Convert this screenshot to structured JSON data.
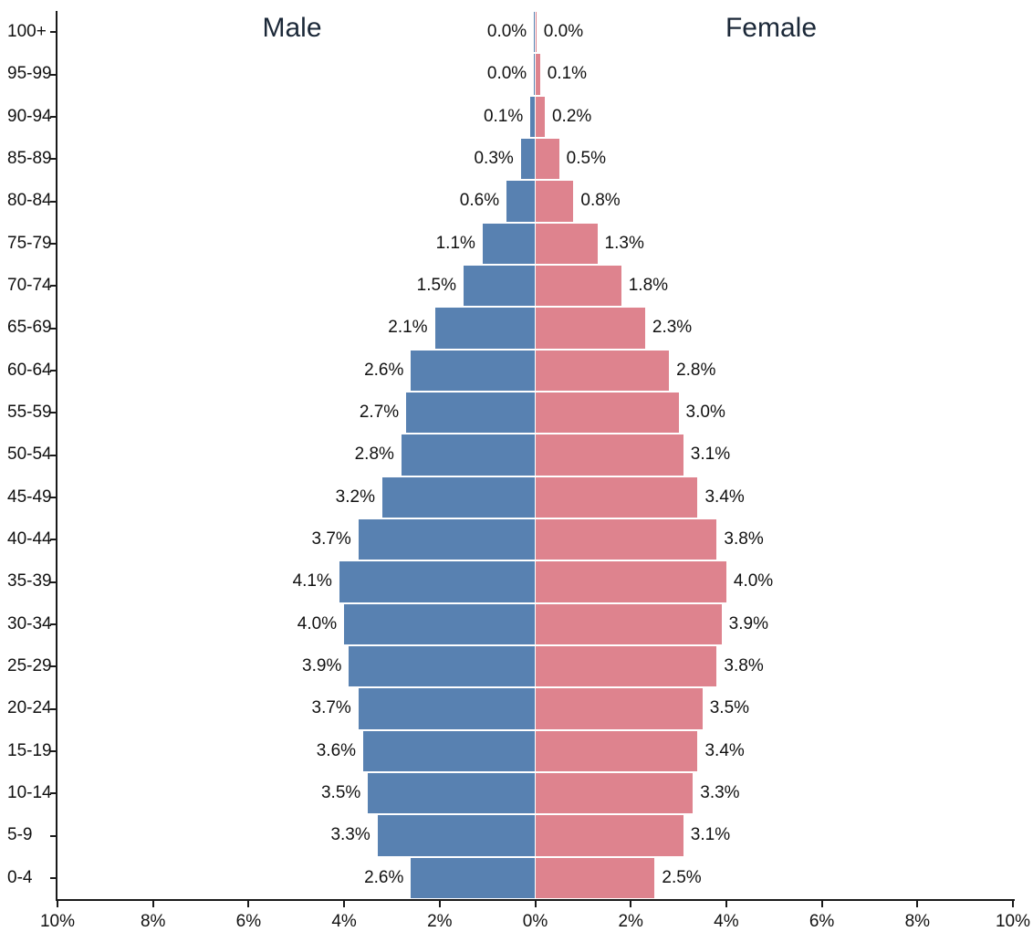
{
  "chart_data": {
    "type": "bar",
    "subtype": "population-pyramid",
    "title": "",
    "xlabel": "",
    "ylabel": "",
    "grid": false,
    "legend_position": "none",
    "axis_max": 10,
    "x_ticks": [
      "10%",
      "8%",
      "6%",
      "4%",
      "2%",
      "0%",
      "2%",
      "4%",
      "6%",
      "8%",
      "10%"
    ],
    "categories": [
      "100+",
      "95-99",
      "90-94",
      "85-89",
      "80-84",
      "75-79",
      "70-74",
      "65-69",
      "60-64",
      "55-59",
      "50-54",
      "45-49",
      "40-44",
      "35-39",
      "30-34",
      "25-29",
      "20-24",
      "15-19",
      "10-14",
      "5-9",
      "0-4"
    ],
    "series": [
      {
        "name": "Male",
        "side": "left",
        "color": "#5881b1",
        "values": [
          0.0,
          0.0,
          0.1,
          0.3,
          0.6,
          1.1,
          1.5,
          2.1,
          2.6,
          2.7,
          2.8,
          3.2,
          3.7,
          4.1,
          4.0,
          3.9,
          3.7,
          3.6,
          3.5,
          3.3,
          2.6
        ],
        "labels": [
          "0.0%",
          "0.0%",
          "0.1%",
          "0.3%",
          "0.6%",
          "1.1%",
          "1.5%",
          "2.1%",
          "2.6%",
          "2.7%",
          "2.8%",
          "3.2%",
          "3.7%",
          "4.1%",
          "4.0%",
          "3.9%",
          "3.7%",
          "3.6%",
          "3.5%",
          "3.3%",
          "2.6%"
        ]
      },
      {
        "name": "Female",
        "side": "right",
        "color": "#de838e",
        "values": [
          0.0,
          0.1,
          0.2,
          0.5,
          0.8,
          1.3,
          1.8,
          2.3,
          2.8,
          3.0,
          3.1,
          3.4,
          3.8,
          4.0,
          3.9,
          3.8,
          3.5,
          3.4,
          3.3,
          3.1,
          2.5
        ],
        "labels": [
          "0.0%",
          "0.1%",
          "0.2%",
          "0.5%",
          "0.8%",
          "1.3%",
          "1.8%",
          "2.3%",
          "2.8%",
          "3.0%",
          "3.1%",
          "3.4%",
          "3.8%",
          "4.0%",
          "3.9%",
          "3.8%",
          "3.5%",
          "3.4%",
          "3.3%",
          "3.1%",
          "2.5%"
        ]
      }
    ]
  }
}
